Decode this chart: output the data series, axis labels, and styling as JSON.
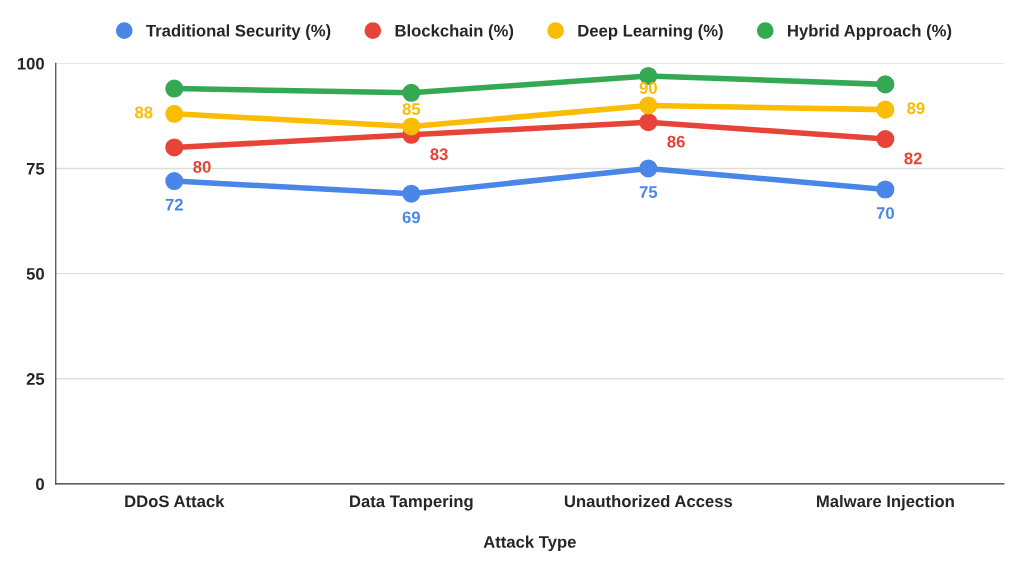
{
  "chart_data": {
    "type": "line",
    "xlabel": "Attack Type",
    "categories": [
      "DDoS Attack",
      "Data Tampering",
      "Unauthorized Access",
      "Malware Injection"
    ],
    "series": [
      {
        "name": "Traditional Security (%)",
        "color": "#4a86e8",
        "values": [
          72,
          69,
          75,
          70
        ],
        "value_labels": [
          "72",
          "69",
          "75",
          "70"
        ]
      },
      {
        "name": "Blockchain (%)",
        "color": "#e84338",
        "values": [
          80,
          83,
          86,
          82
        ],
        "value_labels": [
          "80",
          "83",
          "86",
          "82"
        ]
      },
      {
        "name": "Deep Learning (%)",
        "color": "#fbbc04",
        "values": [
          88,
          85,
          90,
          89
        ],
        "value_labels": [
          "88",
          "85",
          "90",
          "89"
        ]
      },
      {
        "name": "Hybrid Approach (%)",
        "color": "#34a853",
        "values": [
          94,
          93,
          97,
          95
        ]
      }
    ],
    "ylim": [
      0,
      100
    ],
    "yticks": [
      0,
      25,
      50,
      75,
      100
    ],
    "grid": "y",
    "legend": "top",
    "marker": "circle",
    "line_style": "solid"
  }
}
